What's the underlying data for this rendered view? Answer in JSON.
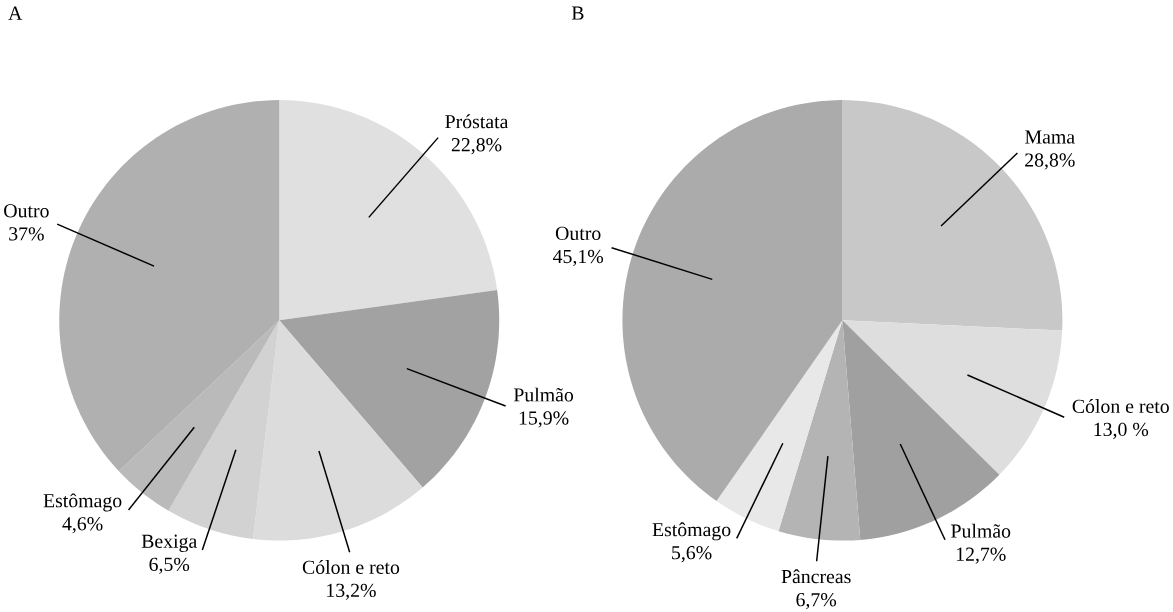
{
  "chart_data": [
    {
      "type": "pie",
      "title": "A",
      "categories": [
        "Próstata",
        "Pulmão",
        "Cólon e reto",
        "Bexiga",
        "Estômago",
        "Outro"
      ],
      "values": [
        22.8,
        15.9,
        13.2,
        6.5,
        4.6,
        37
      ],
      "value_labels": [
        "22,8%",
        "15,9%",
        "13,2%",
        "6,5%",
        "4,6%",
        "37%"
      ],
      "colors": [
        "#e0e0e0",
        "#a2a2a2",
        "#dcdcdc",
        "#d2d2d2",
        "#bababa",
        "#b0b0b0"
      ]
    },
    {
      "type": "pie",
      "title": "B",
      "categories": [
        "Mama",
        "Cólon e reto",
        "Pulmão",
        "Pâncreas",
        "Estômago",
        "Outro"
      ],
      "values": [
        28.8,
        13.0,
        12.7,
        6.7,
        5.6,
        45.1
      ],
      "value_labels": [
        "28,8%",
        "13,0 %",
        "12,7%",
        "6,7%",
        "5,6%",
        "45,1%"
      ],
      "colors": [
        "#c8c8c8",
        "#dedede",
        "#a0a0a0",
        "#b4b4b4",
        "#e8e8e8",
        "#ababab"
      ]
    }
  ]
}
